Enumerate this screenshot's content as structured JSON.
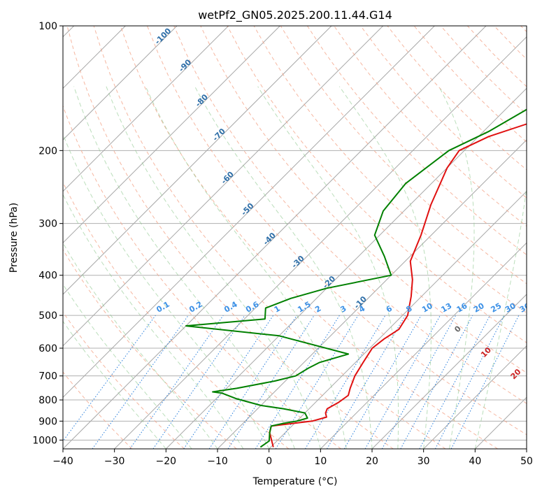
{
  "chart_data": {
    "type": "line",
    "title": "wetPf2_GN05.2025.200.11.44.G14",
    "xlabel": "Temperature (°C)",
    "ylabel": "Pressure (hPa)",
    "xlim": [
      -40,
      50
    ],
    "ylim": [
      1050,
      100
    ],
    "y_scale": "log",
    "grid": true,
    "x_ticks": [
      -40,
      -30,
      -20,
      -10,
      0,
      10,
      20,
      30,
      40,
      50
    ],
    "x_tick_labels": [
      "−40",
      "−30",
      "−20",
      "−10",
      "0",
      "10",
      "20",
      "30",
      "40",
      "50"
    ],
    "y_ticks": [
      100,
      200,
      300,
      400,
      500,
      600,
      700,
      800,
      900,
      1000
    ],
    "y_tick_labels": [
      "100",
      "200",
      "300",
      "400",
      "500",
      "600",
      "700",
      "800",
      "900",
      "1000"
    ],
    "dry_adiabat_labels": [
      "-100",
      "-90",
      "-80",
      "-70",
      "-60",
      "-50",
      "-40",
      "-30",
      "-20",
      "-10",
      "0",
      "10",
      "20",
      "30",
      "40"
    ],
    "mixing_ratio_labels": [
      "0.1",
      "0.2",
      "0.4",
      "0.6",
      "1",
      "1.5",
      "2",
      "3",
      "4",
      "6",
      "8",
      "10",
      "13",
      "16",
      "20",
      "25",
      "30",
      "36"
    ],
    "series": [
      {
        "color": "#e01010",
        "points": [
          [
            0.5,
            1040
          ],
          [
            -1,
            1005
          ],
          [
            -3,
            960
          ],
          [
            -4,
            925
          ],
          [
            3,
            900
          ],
          [
            5,
            880
          ],
          [
            4,
            860
          ],
          [
            3.5,
            840
          ],
          [
            4.5,
            810
          ],
          [
            5,
            780
          ],
          [
            4,
            750
          ],
          [
            2.5,
            700
          ],
          [
            1.5,
            650
          ],
          [
            0.5,
            600
          ],
          [
            1,
            570
          ],
          [
            2,
            540
          ],
          [
            1,
            500
          ],
          [
            -2,
            450
          ],
          [
            -5,
            410
          ],
          [
            -9,
            370
          ],
          [
            -12,
            320
          ],
          [
            -16,
            270
          ],
          [
            -20,
            220
          ],
          [
            -21,
            200
          ],
          [
            -18,
            185
          ],
          [
            -12,
            170
          ],
          [
            -6,
            155
          ],
          [
            -2,
            140
          ],
          [
            2,
            125
          ],
          [
            5,
            115
          ],
          [
            8,
            107
          ],
          [
            10,
            100
          ]
        ]
      },
      {
        "color": "#008000",
        "points": [
          [
            -2,
            1040
          ],
          [
            -1.5,
            1005
          ],
          [
            -3,
            960
          ],
          [
            -4,
            925
          ],
          [
            -2,
            910
          ],
          [
            0,
            900
          ],
          [
            1.5,
            885
          ],
          [
            0,
            860
          ],
          [
            -5,
            840
          ],
          [
            -10,
            825
          ],
          [
            -16,
            795
          ],
          [
            -20,
            770
          ],
          [
            -22,
            765
          ],
          [
            -18,
            750
          ],
          [
            -12,
            720
          ],
          [
            -9,
            700
          ],
          [
            -8,
            670
          ],
          [
            -7,
            650
          ],
          [
            -3,
            620
          ],
          [
            -20,
            560
          ],
          [
            -40,
            530
          ],
          [
            -26,
            510
          ],
          [
            -28,
            480
          ],
          [
            -25,
            455
          ],
          [
            -20,
            430
          ],
          [
            -10,
            400
          ],
          [
            -15,
            360
          ],
          [
            -21,
            320
          ],
          [
            -24,
            280
          ],
          [
            -25,
            240
          ],
          [
            -23,
            200
          ],
          [
            -19,
            180
          ],
          [
            -16,
            160
          ],
          [
            -14,
            145
          ],
          [
            -12,
            125
          ],
          [
            -10,
            115
          ],
          [
            -8,
            107
          ],
          [
            -6,
            100
          ]
        ]
      }
    ]
  }
}
